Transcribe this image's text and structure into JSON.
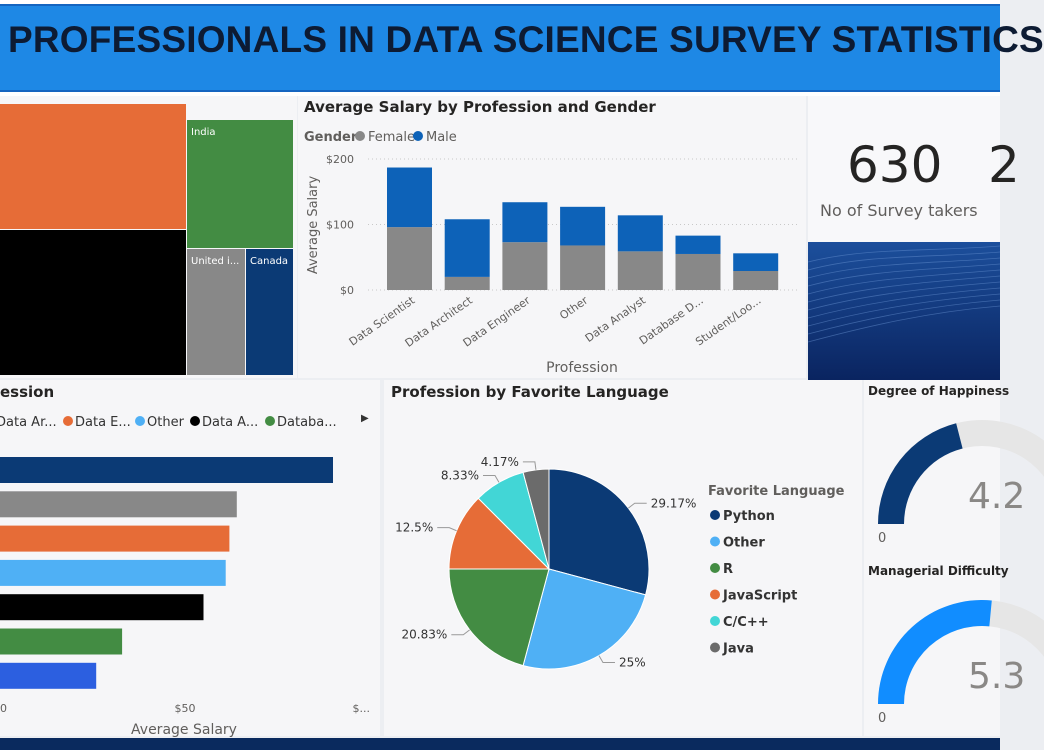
{
  "header": {
    "title": "PROFESSIONALS IN DATA SCIENCE SURVEY STATISTICS"
  },
  "colors": {
    "banner": "#1e88e5",
    "navy": "#0b3a75",
    "gray": "#888888",
    "orange": "#e66c37",
    "green": "#438c43",
    "lightblue": "#4fb0f5",
    "black": "#000000",
    "teal": "#42d6d6",
    "darkgray": "#6b6b6b",
    "blue": "#0d62b8",
    "gaugeBlue": "#118dff"
  },
  "treemap": {
    "chart_data": {
      "type": "treemap",
      "title": "",
      "items": [
        {
          "label": "",
          "color": "#e66c37"
        },
        {
          "label": "",
          "color": "#000000"
        },
        {
          "label": "India",
          "color": "#438c43"
        },
        {
          "label": "United i...",
          "color": "#888888"
        },
        {
          "label": "Canada",
          "color": "#0b3a75"
        }
      ]
    }
  },
  "salaryGender": {
    "title": "Average Salary by Profession and Gender",
    "legendTitle": "Gender",
    "chart_data": {
      "type": "bar",
      "stacked": true,
      "title": "Average Salary by Profession and Gender",
      "xlabel": "Profession",
      "ylabel": "Average Salary",
      "categories": [
        "Data Scientist",
        "Data Architect",
        "Data Engineer",
        "Other",
        "Data Analyst",
        "Database D...",
        "Student/Loo..."
      ],
      "series": [
        {
          "name": "Female",
          "color": "#888888",
          "values": [
            96,
            20,
            73,
            68,
            59,
            55,
            29
          ]
        },
        {
          "name": "Male",
          "color": "#0d62b8",
          "values": [
            91,
            88,
            61,
            59,
            55,
            28,
            27
          ]
        }
      ],
      "ylim": [
        0,
        200
      ],
      "yticks": [
        {
          "v": 0,
          "label": "$0"
        },
        {
          "v": 100,
          "label": "$100"
        },
        {
          "v": 200,
          "label": "$200"
        }
      ]
    }
  },
  "kpi": {
    "value": "630",
    "label": "No of Survey takers",
    "second_value_partial": "2"
  },
  "salaryBar": {
    "title": "ession",
    "chart_data": {
      "type": "bar",
      "orientation": "horizontal",
      "xlabel": "Average Salary",
      "legend": [
        {
          "name": "Data Ar...",
          "color": "#0b3a75"
        },
        {
          "name": "Data E...",
          "color": "#e66c37"
        },
        {
          "name": "Other",
          "color": "#4fb0f5"
        },
        {
          "name": "Data A...",
          "color": "#000000"
        },
        {
          "name": "Databa...",
          "color": "#438c43"
        }
      ],
      "values": [
        {
          "color": "#0b3a75",
          "value": 90
        },
        {
          "color": "#888888",
          "value": 64
        },
        {
          "color": "#e66c37",
          "value": 62
        },
        {
          "color": "#4fb0f5",
          "value": 61
        },
        {
          "color": "#000000",
          "value": 55
        },
        {
          "color": "#438c43",
          "value": 33
        },
        {
          "color": "#2c5fe0",
          "value": 26
        }
      ],
      "xlim": [
        0,
        100
      ],
      "xticks": [
        {
          "v": 0,
          "label": "0"
        },
        {
          "v": 50,
          "label": "$50"
        },
        {
          "v": 100,
          "label": "$..."
        }
      ]
    }
  },
  "language": {
    "title": "Profession by Favorite Language",
    "legendTitle": "Favorite Language",
    "chart_data": {
      "type": "pie",
      "title": "Profession by Favorite Language",
      "slices": [
        {
          "name": "Python",
          "value": 29.17,
          "label": "29.17%",
          "color": "#0b3a75"
        },
        {
          "name": "Other",
          "value": 25,
          "label": "25%",
          "color": "#4fb0f5"
        },
        {
          "name": "R",
          "value": 20.83,
          "label": "20.83%",
          "color": "#438c43"
        },
        {
          "name": "JavaScript",
          "value": 12.5,
          "label": "12.5%",
          "color": "#e66c37"
        },
        {
          "name": "C/C++",
          "value": 8.33,
          "label": "8.33%",
          "color": "#42d6d6"
        },
        {
          "name": "Java",
          "value": 4.17,
          "label": "4.17%",
          "color": "#6b6b6b"
        }
      ]
    }
  },
  "gauges": [
    {
      "title": "Degree of Happiness",
      "min": "0",
      "value_text": "4.2",
      "fraction": 0.42,
      "color": "#0b3a75"
    },
    {
      "title": "Managerial Difficulty",
      "min": "0",
      "value_text": "5.3",
      "fraction": 0.53,
      "color": "#118dff"
    }
  ]
}
